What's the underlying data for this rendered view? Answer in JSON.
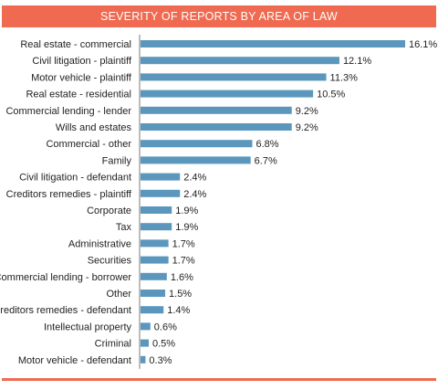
{
  "title": "SEVERITY OF REPORTS BY AREA OF LAW",
  "colors": {
    "banner": "#ef6a50",
    "bar": "#5b97bd",
    "axis": "#7a7a7a"
  },
  "chart_data": {
    "type": "bar",
    "orientation": "horizontal",
    "title": "SEVERITY OF REPORTS BY AREA OF LAW",
    "xlabel": "",
    "ylabel": "",
    "grid": false,
    "categories": [
      "Real estate - commercial",
      "Civil litigation - plaintiff",
      "Motor vehicle - plaintiff",
      "Real estate - residential",
      "Commercial lending - lender",
      "Wills and estates",
      "Commercial - other",
      "Family",
      "Civil litigation - defendant",
      "Creditors remedies - plaintiff",
      "Corporate",
      "Tax",
      "Administrative",
      "Securities",
      "Commercial lending - borrower",
      "Other",
      "Creditors remedies - defendant",
      "Intellectual property",
      "Criminal",
      "Motor vehicle - defendant"
    ],
    "values": [
      16.1,
      12.1,
      11.3,
      10.5,
      9.2,
      9.2,
      6.8,
      6.7,
      2.4,
      2.4,
      1.9,
      1.9,
      1.7,
      1.7,
      1.6,
      1.5,
      1.4,
      0.6,
      0.5,
      0.3
    ],
    "value_labels": [
      "16.1%",
      "12.1%",
      "11.3%",
      "10.5%",
      "9.2%",
      "9.2%",
      "6.8%",
      "6.7%",
      "2.4%",
      "2.4%",
      "1.9%",
      "1.9%",
      "1.7%",
      "1.7%",
      "1.6%",
      "1.5%",
      "1.4%",
      "0.6%",
      "0.5%",
      "0.3%"
    ],
    "xlim": [
      0,
      16.1
    ]
  }
}
